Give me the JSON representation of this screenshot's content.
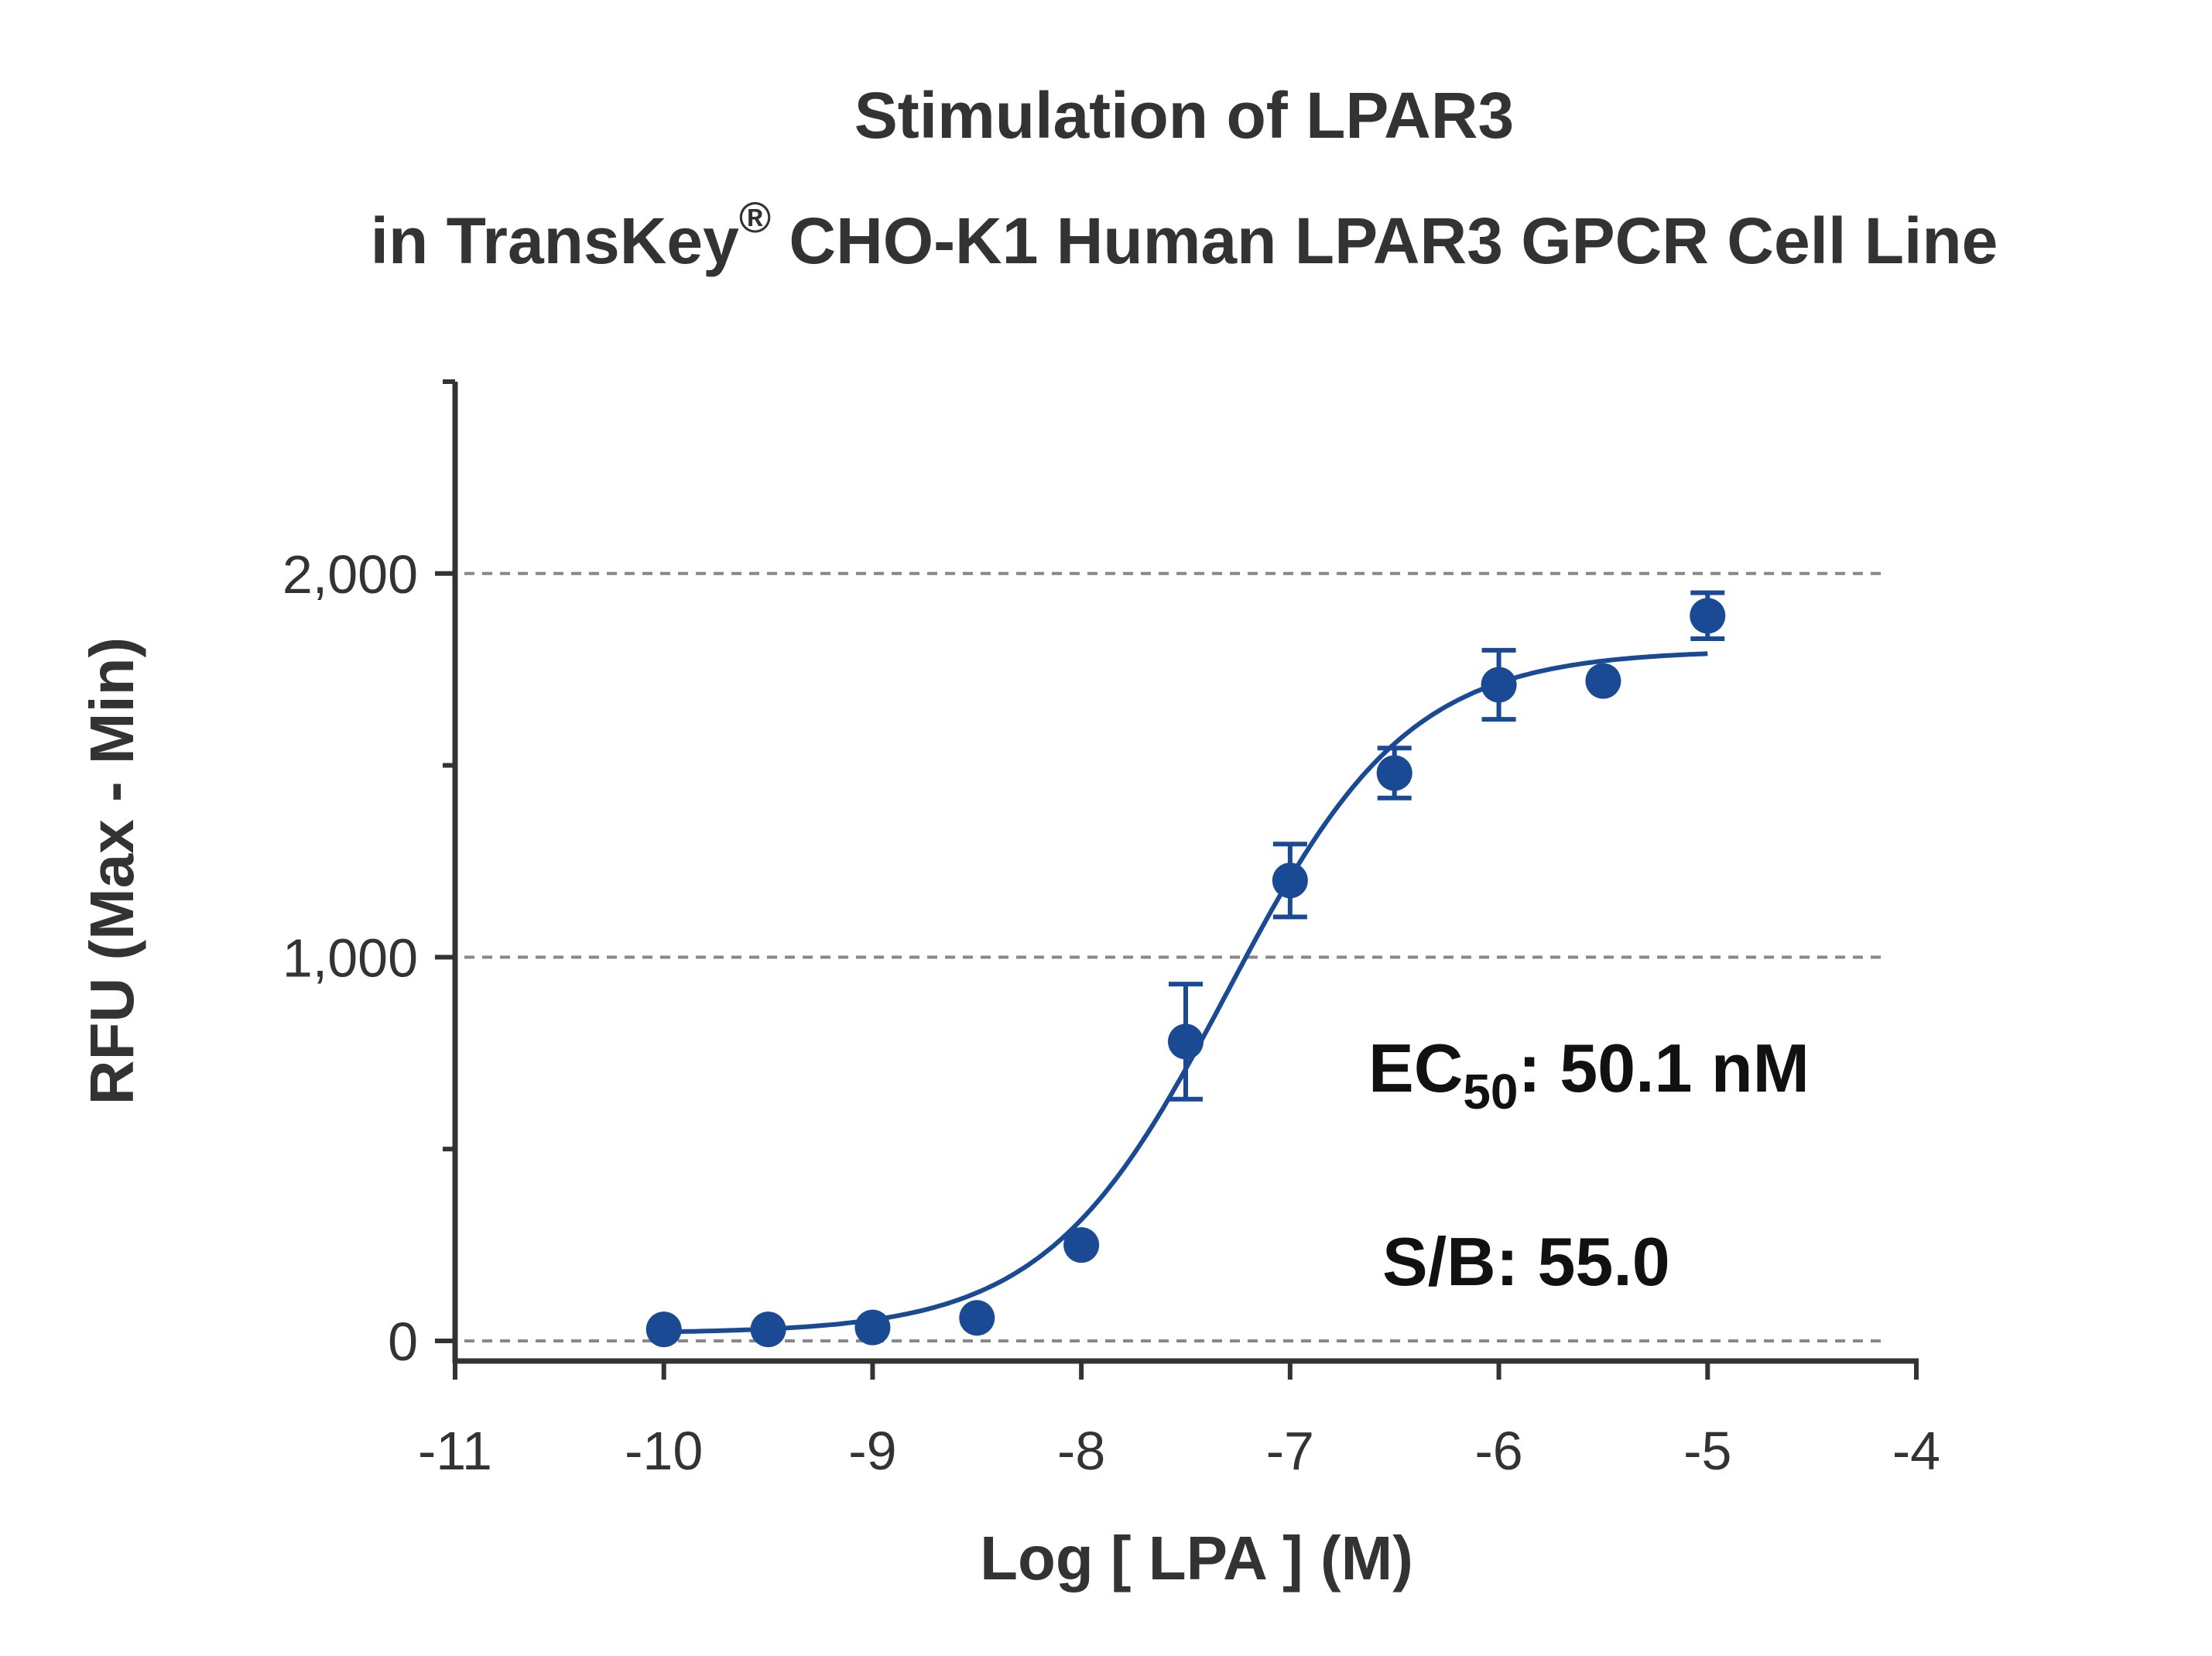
{
  "colors": {
    "series": "#1a4a94",
    "axis": "#333333",
    "grid": "#888888",
    "text": "#333333"
  },
  "chart_data": {
    "type": "scatter",
    "title_line1": "Stimulation of  LPAR3",
    "title_line2_pre": "in TransKey",
    "title_line2_sup": "®",
    "title_line2_post": " CHO-K1 Human LPAR3 GPCR Cell Line",
    "xlabel": "Log [ LPA ]  (M)",
    "ylabel": "RFU (Max - Min)",
    "xlim": [
      -11,
      -4
    ],
    "ylim": [
      -50,
      2500
    ],
    "x_ticks": [
      -11,
      -10,
      -9,
      -8,
      -7,
      -6,
      -5,
      -4
    ],
    "x_tick_labels": [
      "-11",
      "-10",
      "-9",
      "-8",
      "-7",
      "-6",
      "-5",
      "-4"
    ],
    "y_ticks": [
      0,
      1000,
      2000
    ],
    "y_tick_labels": [
      "0",
      "1,000",
      "2,000"
    ],
    "y_minor_ticks": [
      500,
      1500,
      2500
    ],
    "grid": "dashed horizontal at y ticks",
    "series": [
      {
        "x": [
          -10,
          -9.5,
          -9,
          -8.5,
          -8,
          -7.5,
          -7,
          -6.5,
          -6,
          -5.5,
          -5
        ],
        "y": [
          30,
          30,
          35,
          60,
          250,
          780,
          1200,
          1480,
          1710,
          1720,
          1890
        ],
        "error": [
          10,
          10,
          10,
          10,
          10,
          150,
          95,
          65,
          90,
          20,
          60
        ]
      }
    ],
    "fit": {
      "model": "four-parameter logistic",
      "bottom": 20,
      "top": 1800,
      "log_ec50": -7.3,
      "hill_slope": 1.0
    },
    "annotations": {
      "ec50_prefix": "EC",
      "ec50_sub": "50",
      "ec50_value": ": 50.1 nM",
      "sb": "S/B: 55.0"
    }
  }
}
